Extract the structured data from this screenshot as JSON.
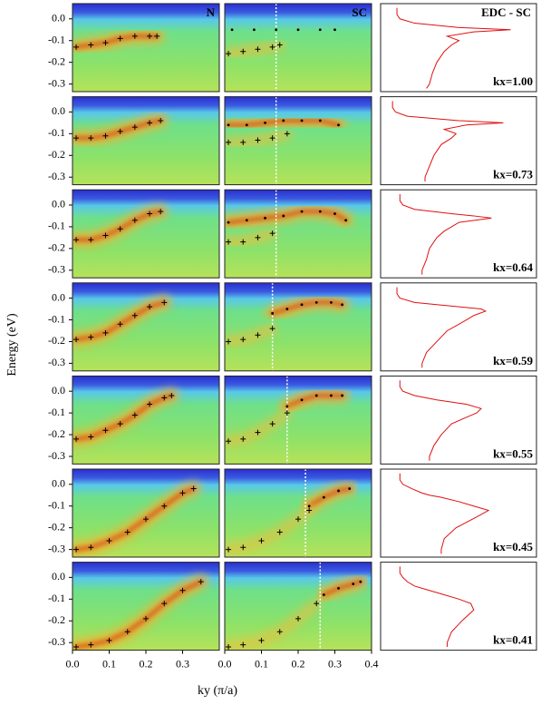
{
  "chart_data": {
    "type": "arpes-grid",
    "x_label": "ky (π/a)",
    "y_label": "Energy (eV)",
    "n_label": "N",
    "sc_label": "SC",
    "edc_label": "EDC - SC",
    "xlim": [
      0,
      0.4
    ],
    "ylim": [
      -0.335,
      0.07
    ],
    "edc_xlim": [
      0,
      1
    ],
    "yticks": [
      {
        "value": 0,
        "label": "0.0"
      },
      -0.1,
      -0.2,
      -0.3
    ],
    "xticks_n": [
      {
        "value": 0,
        "label": "0.0"
      },
      0.1,
      0.2,
      0.3
    ],
    "xticks_sc": [
      {
        "value": 0,
        "label": "0.0"
      },
      0.1,
      0.2,
      0.3,
      0.4
    ],
    "cross_color": "#000000",
    "dot_color": "#000000",
    "cut_color": "#ffffff",
    "edc_color": "#e01010",
    "rows": [
      {
        "kx_label": "kx=1.00",
        "n_ky": [
          0.01,
          0.05,
          0.09,
          0.13,
          0.17,
          0.21,
          0.23
        ],
        "n_e": [
          -0.13,
          -0.12,
          -0.11,
          -0.09,
          -0.08,
          -0.08,
          -0.08
        ],
        "sc_ky": [
          0.01,
          0.05,
          0.09,
          0.13,
          0.15
        ],
        "sc_e": [
          -0.16,
          -0.15,
          -0.14,
          -0.13,
          -0.12
        ],
        "dot_ky": [
          0.02,
          0.08,
          0.14,
          0.2,
          0.26,
          0.3
        ],
        "dot_e": [
          -0.05,
          -0.05,
          -0.05,
          -0.05,
          -0.05,
          -0.05
        ],
        "cut_ky": 0.14,
        "edc_e": [
          0.05,
          0.02,
          0,
          -0.02,
          -0.04,
          -0.05,
          -0.06,
          -0.08,
          -0.1,
          -0.12,
          -0.15,
          -0.2,
          -0.25,
          -0.3,
          -0.32
        ],
        "edc_i": [
          0.08,
          0.08,
          0.1,
          0.2,
          0.5,
          0.85,
          0.6,
          0.42,
          0.5,
          0.45,
          0.4,
          0.35,
          0.32,
          0.3,
          0.28
        ]
      },
      {
        "kx_label": "kx=0.73",
        "n_ky": [
          0.01,
          0.05,
          0.09,
          0.13,
          0.17,
          0.21,
          0.24
        ],
        "n_e": [
          -0.12,
          -0.12,
          -0.11,
          -0.09,
          -0.07,
          -0.05,
          -0.04
        ],
        "sc_ky": [
          0.01,
          0.05,
          0.09,
          0.13,
          0.17
        ],
        "sc_e": [
          -0.14,
          -0.14,
          -0.13,
          -0.12,
          -0.1
        ],
        "dot_ky": [
          0.01,
          0.06,
          0.11,
          0.16,
          0.21,
          0.26,
          0.31
        ],
        "dot_e": [
          -0.06,
          -0.06,
          -0.05,
          -0.04,
          -0.04,
          -0.04,
          -0.06
        ],
        "cut_ky": 0.14,
        "edc_e": [
          0.05,
          0.02,
          0,
          -0.02,
          -0.04,
          -0.05,
          -0.06,
          -0.08,
          -0.1,
          -0.12,
          -0.15,
          -0.2,
          -0.25,
          -0.3,
          -0.32
        ],
        "edc_i": [
          0.05,
          0.05,
          0.07,
          0.15,
          0.5,
          0.8,
          0.55,
          0.4,
          0.48,
          0.45,
          0.38,
          0.33,
          0.3,
          0.27,
          0.27
        ]
      },
      {
        "kx_label": "kx=0.64",
        "n_ky": [
          0.01,
          0.05,
          0.09,
          0.13,
          0.17,
          0.21,
          0.24
        ],
        "n_e": [
          -0.16,
          -0.16,
          -0.14,
          -0.11,
          -0.07,
          -0.04,
          -0.03
        ],
        "sc_ky": [
          0.01,
          0.05,
          0.09,
          0.13
        ],
        "sc_e": [
          -0.17,
          -0.17,
          -0.15,
          -0.13
        ],
        "dot_ky": [
          0.01,
          0.06,
          0.11,
          0.16,
          0.21,
          0.26,
          0.3,
          0.33
        ],
        "dot_e": [
          -0.08,
          -0.07,
          -0.06,
          -0.05,
          -0.03,
          -0.03,
          -0.04,
          -0.07
        ],
        "cut_ky": 0.14,
        "edc_e": [
          0.05,
          0.02,
          0,
          -0.02,
          -0.04,
          -0.05,
          -0.06,
          -0.08,
          -0.1,
          -0.12,
          -0.15,
          -0.2,
          -0.25,
          -0.3,
          -0.32
        ],
        "edc_i": [
          0.1,
          0.1,
          0.12,
          0.2,
          0.45,
          0.6,
          0.72,
          0.5,
          0.45,
          0.4,
          0.35,
          0.3,
          0.28,
          0.25,
          0.25
        ]
      },
      {
        "kx_label": "kx=0.59",
        "n_ky": [
          0.01,
          0.05,
          0.09,
          0.13,
          0.17,
          0.21,
          0.25
        ],
        "n_e": [
          -0.19,
          -0.18,
          -0.16,
          -0.12,
          -0.08,
          -0.04,
          -0.02
        ],
        "sc_ky": [
          0.01,
          0.05,
          0.09,
          0.13
        ],
        "sc_e": [
          -0.2,
          -0.19,
          -0.17,
          -0.14
        ],
        "dot_ky": [
          0.13,
          0.17,
          0.21,
          0.25,
          0.29,
          0.32
        ],
        "dot_e": [
          -0.07,
          -0.05,
          -0.03,
          -0.02,
          -0.02,
          -0.03
        ],
        "cut_ky": 0.13,
        "edc_e": [
          0.05,
          0.02,
          0,
          -0.02,
          -0.04,
          -0.05,
          -0.06,
          -0.08,
          -0.1,
          -0.12,
          -0.15,
          -0.2,
          -0.25,
          -0.3,
          -0.32
        ],
        "edc_i": [
          0.08,
          0.08,
          0.1,
          0.2,
          0.5,
          0.65,
          0.68,
          0.6,
          0.55,
          0.5,
          0.42,
          0.35,
          0.28,
          0.25,
          0.25
        ]
      },
      {
        "kx_label": "kx=0.55",
        "n_ky": [
          0.01,
          0.05,
          0.09,
          0.13,
          0.17,
          0.21,
          0.25,
          0.27
        ],
        "n_e": [
          -0.22,
          -0.21,
          -0.18,
          -0.15,
          -0.11,
          -0.06,
          -0.03,
          -0.02
        ],
        "sc_ky": [
          0.01,
          0.05,
          0.09,
          0.13,
          0.17
        ],
        "sc_e": [
          -0.23,
          -0.22,
          -0.19,
          -0.15,
          -0.1
        ],
        "dot_ky": [
          0.17,
          0.21,
          0.25,
          0.29,
          0.32
        ],
        "dot_e": [
          -0.07,
          -0.04,
          -0.02,
          -0.02,
          -0.02
        ],
        "cut_ky": 0.17,
        "edc_e": [
          0.05,
          0.02,
          0,
          -0.02,
          -0.04,
          -0.05,
          -0.06,
          -0.08,
          -0.1,
          -0.12,
          -0.15,
          -0.2,
          -0.25,
          -0.3,
          -0.32
        ],
        "edc_i": [
          0.1,
          0.1,
          0.12,
          0.2,
          0.35,
          0.45,
          0.55,
          0.65,
          0.62,
          0.55,
          0.45,
          0.38,
          0.33,
          0.3,
          0.3
        ]
      },
      {
        "kx_label": "kx=0.45",
        "n_ky": [
          0.01,
          0.05,
          0.1,
          0.15,
          0.2,
          0.25,
          0.3,
          0.33
        ],
        "n_e": [
          -0.3,
          -0.29,
          -0.26,
          -0.22,
          -0.16,
          -0.1,
          -0.04,
          -0.02
        ],
        "sc_ky": [
          0.01,
          0.05,
          0.1,
          0.15,
          0.2,
          0.23
        ],
        "sc_e": [
          -0.3,
          -0.29,
          -0.26,
          -0.22,
          -0.16,
          -0.12
        ],
        "dot_ky": [
          0.23,
          0.27,
          0.31,
          0.34
        ],
        "dot_e": [
          -0.1,
          -0.06,
          -0.03,
          -0.02
        ],
        "cut_ky": 0.22,
        "edc_e": [
          0.05,
          0.02,
          0,
          -0.02,
          -0.04,
          -0.05,
          -0.06,
          -0.08,
          -0.1,
          -0.12,
          -0.15,
          -0.2,
          -0.25,
          -0.3,
          -0.32
        ],
        "edc_i": [
          0.1,
          0.1,
          0.12,
          0.18,
          0.25,
          0.3,
          0.38,
          0.5,
          0.6,
          0.7,
          0.62,
          0.48,
          0.4,
          0.38,
          0.38
        ]
      },
      {
        "kx_label": "kx=0.41",
        "n_ky": [
          0.01,
          0.05,
          0.1,
          0.15,
          0.2,
          0.25,
          0.3,
          0.35
        ],
        "n_e": [
          -0.32,
          -0.31,
          -0.29,
          -0.25,
          -0.19,
          -0.12,
          -0.06,
          -0.02
        ],
        "sc_ky": [
          0.01,
          0.05,
          0.1,
          0.15,
          0.2,
          0.25
        ],
        "sc_e": [
          -0.32,
          -0.31,
          -0.29,
          -0.25,
          -0.19,
          -0.12
        ],
        "dot_ky": [
          0.27,
          0.31,
          0.35,
          0.37
        ],
        "dot_e": [
          -0.08,
          -0.05,
          -0.03,
          -0.02
        ],
        "cut_ky": 0.26,
        "edc_e": [
          0.05,
          0.02,
          0,
          -0.02,
          -0.04,
          -0.05,
          -0.06,
          -0.08,
          -0.1,
          -0.12,
          -0.15,
          -0.2,
          -0.25,
          -0.3,
          -0.32
        ],
        "edc_i": [
          0.1,
          0.1,
          0.12,
          0.15,
          0.2,
          0.25,
          0.3,
          0.4,
          0.5,
          0.58,
          0.6,
          0.52,
          0.45,
          0.42,
          0.42
        ]
      }
    ]
  }
}
